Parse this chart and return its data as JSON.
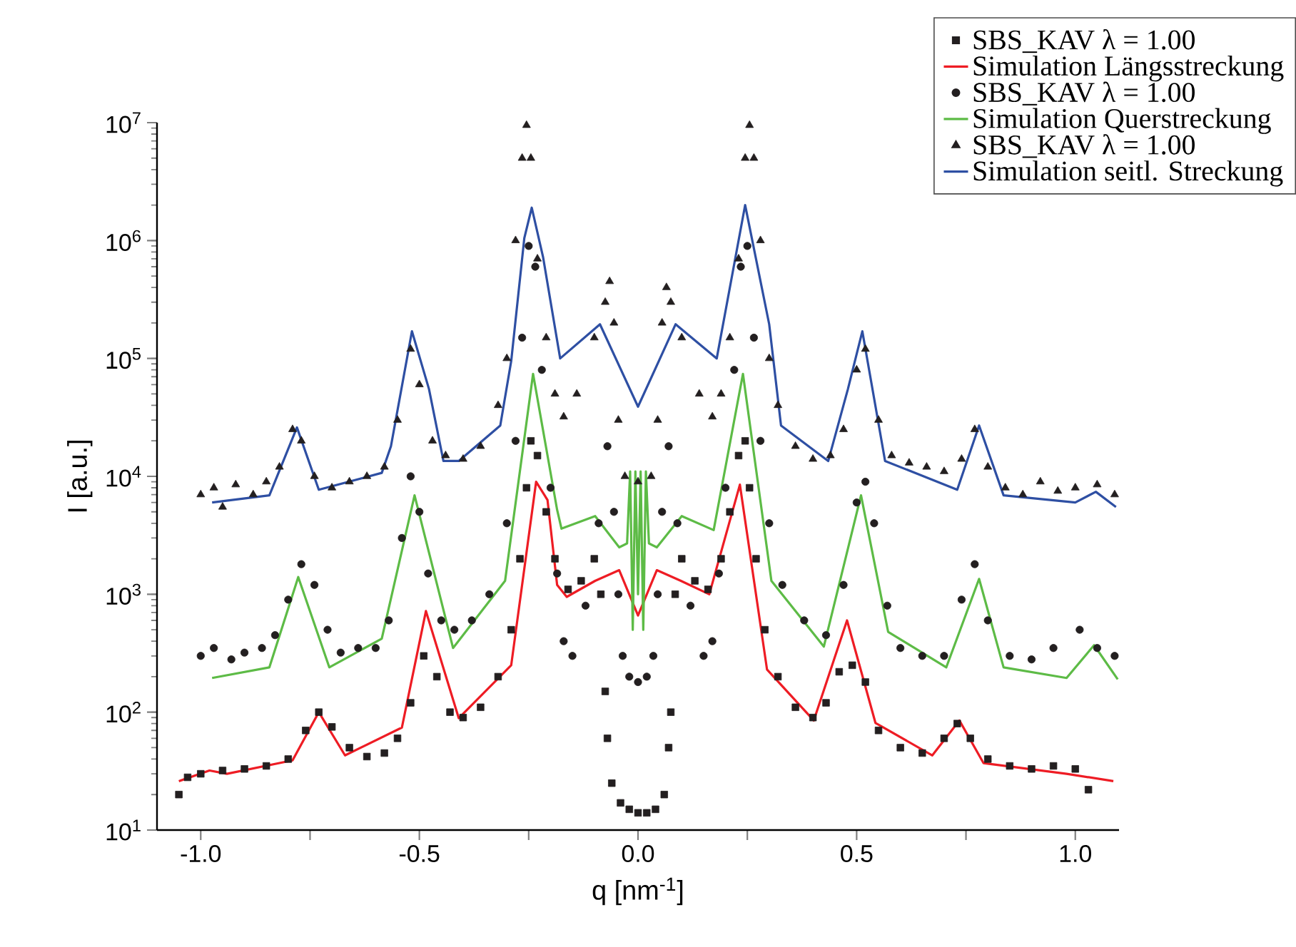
{
  "chart_data": {
    "type": "line",
    "xlabel": "q [nm$^{-1}$]",
    "ylabel": "I [a.u.]",
    "log": "y",
    "grid": false,
    "legend": "top right",
    "xlim": [
      -1.1,
      1.1
    ],
    "ylim": [
      10,
      10000000
    ],
    "xticks": [
      {
        "value": -1,
        "label": "-1.0"
      },
      {
        "value": -0.75,
        "label": null
      },
      {
        "value": -0.5,
        "label": "-0.5"
      },
      {
        "value": -0.25,
        "label": null
      },
      {
        "value": 0,
        "label": "0.0"
      },
      {
        "value": 0.25,
        "label": null
      },
      {
        "value": 0.5,
        "label": "0.5"
      },
      {
        "value": 0.75,
        "label": null
      },
      {
        "value": 1,
        "label": "1.0"
      }
    ],
    "yticks": [
      {
        "value": 10,
        "label": "10$^{1}$"
      },
      {
        "value": 100,
        "label": "10$^{2}$"
      },
      {
        "value": 1000,
        "label": "10$^{3}$"
      },
      {
        "value": 10000,
        "label": "10$^{4}$"
      },
      {
        "value": 100000,
        "label": "10$^{5}$"
      },
      {
        "value": 1000000,
        "label": "10$^{6}$"
      },
      {
        "value": 10000000,
        "label": "10$^{7}$"
      }
    ],
    "series": [
      {
        "name": "SBS_KAV λ = 1.00",
        "type": "scatter",
        "marker": "square",
        "color": "#231f20",
        "x": [
          -1.05,
          -1.03,
          -1.0,
          -0.95,
          -0.9,
          -0.85,
          -0.8,
          -0.76,
          -0.73,
          -0.7,
          -0.66,
          -0.62,
          -0.58,
          -0.55,
          -0.52,
          -0.49,
          -0.46,
          -0.43,
          -0.4,
          -0.36,
          -0.32,
          -0.29,
          -0.27,
          -0.255,
          -0.245,
          -0.23,
          -0.21,
          -0.19,
          -0.16,
          -0.13,
          -0.1,
          -0.085,
          -0.075,
          -0.07,
          -0.06,
          -0.04,
          -0.02,
          0,
          0.02,
          0.04,
          0.06,
          0.07,
          0.075,
          0.085,
          0.1,
          0.13,
          0.16,
          0.19,
          0.21,
          0.23,
          0.245,
          0.255,
          0.27,
          0.29,
          0.32,
          0.36,
          0.4,
          0.43,
          0.46,
          0.49,
          0.52,
          0.55,
          0.6,
          0.65,
          0.7,
          0.73,
          0.76,
          0.8,
          0.85,
          0.9,
          0.95,
          1.0,
          1.03
        ],
        "values": [
          20,
          28,
          30,
          32,
          33,
          35,
          40,
          70,
          100,
          75,
          50,
          42,
          45,
          60,
          120,
          300,
          200,
          100,
          90,
          110,
          200,
          500,
          2000,
          8000,
          20000,
          15000,
          5000,
          2000,
          1100,
          1300,
          2000,
          1000,
          150,
          60,
          25,
          17,
          15,
          14,
          14,
          15,
          20,
          50,
          100,
          1000,
          2000,
          1300,
          1100,
          2000,
          5000,
          15000,
          20000,
          8000,
          2000,
          500,
          200,
          110,
          90,
          120,
          220,
          250,
          180,
          70,
          50,
          45,
          60,
          80,
          60,
          40,
          35,
          33,
          35,
          33,
          22
        ]
      },
      {
        "name": "Simulation Längsstreckung",
        "marker": "none",
        "color": "#ee1c24",
        "x": [
          -1.05,
          -0.98,
          -0.94,
          -0.79,
          -0.73,
          -0.67,
          -0.54,
          -0.485,
          -0.41,
          -0.29,
          -0.233,
          -0.207,
          -0.185,
          -0.163,
          -0.098,
          -0.043,
          0,
          0.043,
          0.098,
          0.163,
          0.233,
          0.295,
          0.402,
          0.478,
          0.543,
          0.673,
          0.735,
          0.79,
          0.98,
          1.087
        ],
        "values": [
          26,
          32,
          30,
          39,
          100,
          43,
          74,
          720,
          89,
          250,
          9000,
          6300,
          1200,
          950,
          1300,
          1600,
          660,
          1600,
          1300,
          1000,
          8500,
          230,
          85,
          600,
          81,
          43,
          85,
          37,
          30,
          26
        ]
      },
      {
        "name": "SBS_KAV λ = 1.00",
        "type": "scatter",
        "marker": "circle",
        "color": "#231f20",
        "x": [
          -1.0,
          -0.97,
          -0.93,
          -0.9,
          -0.86,
          -0.83,
          -0.8,
          -0.77,
          -0.74,
          -0.71,
          -0.68,
          -0.64,
          -0.6,
          -0.57,
          -0.54,
          -0.52,
          -0.5,
          -0.48,
          -0.45,
          -0.42,
          -0.38,
          -0.34,
          -0.3,
          -0.28,
          -0.265,
          -0.25,
          -0.235,
          -0.22,
          -0.2,
          -0.185,
          -0.17,
          -0.15,
          -0.12,
          -0.09,
          -0.07,
          -0.055,
          -0.045,
          -0.035,
          -0.02,
          0,
          0.02,
          0.035,
          0.045,
          0.055,
          0.07,
          0.09,
          0.12,
          0.15,
          0.17,
          0.185,
          0.2,
          0.22,
          0.235,
          0.25,
          0.265,
          0.28,
          0.3,
          0.33,
          0.38,
          0.43,
          0.47,
          0.5,
          0.52,
          0.54,
          0.57,
          0.6,
          0.65,
          0.7,
          0.74,
          0.77,
          0.8,
          0.85,
          0.9,
          0.95,
          1.01,
          1.05,
          1.09
        ],
        "values": [
          300,
          350,
          280,
          320,
          350,
          450,
          900,
          1800,
          1200,
          500,
          320,
          350,
          350,
          600,
          3000,
          10000,
          5000,
          1500,
          600,
          500,
          600,
          1000,
          4000,
          20000,
          150000,
          900000,
          600000,
          80000,
          8000,
          1500,
          400,
          300,
          800,
          4000,
          18000,
          5000,
          1000,
          300,
          200,
          180,
          200,
          300,
          1000,
          5000,
          18000,
          4000,
          800,
          300,
          400,
          1500,
          8000,
          80000,
          600000,
          900000,
          150000,
          20000,
          4000,
          1200,
          600,
          450,
          1200,
          6000,
          9000,
          4000,
          800,
          350,
          300,
          300,
          900,
          1800,
          600,
          300,
          280,
          350,
          500,
          350,
          300
        ]
      },
      {
        "name": "Simulation Querstreckung",
        "marker": "none",
        "color": "#5dbb46",
        "x": [
          -0.974,
          -0.843,
          -0.777,
          -0.706,
          -0.586,
          -0.511,
          -0.423,
          -0.304,
          -0.24,
          -0.185,
          -0.175,
          -0.098,
          -0.043,
          -0.025,
          -0.018,
          -0.012,
          -0.006,
          0,
          0.006,
          0.012,
          0.018,
          0.025,
          0.043,
          0.1,
          0.173,
          0.24,
          0.305,
          0.425,
          0.51,
          0.572,
          0.705,
          0.78,
          0.836,
          0.98,
          1.043,
          1.097
        ],
        "values": [
          195,
          240,
          1400,
          240,
          420,
          6900,
          350,
          1300,
          74000,
          5200,
          3600,
          4600,
          2500,
          2700,
          11000,
          500,
          11000,
          1000,
          11000,
          500,
          11000,
          2700,
          2500,
          4600,
          3500,
          74000,
          1300,
          360,
          6900,
          480,
          240,
          1350,
          240,
          195,
          370,
          190
        ]
      },
      {
        "name": "SBS_KAV λ = 1.00",
        "type": "scatter",
        "marker": "triangle",
        "color": "#231f20",
        "x": [
          -1.0,
          -0.97,
          -0.95,
          -0.92,
          -0.88,
          -0.85,
          -0.82,
          -0.79,
          -0.77,
          -0.74,
          -0.7,
          -0.66,
          -0.62,
          -0.58,
          -0.55,
          -0.52,
          -0.5,
          -0.47,
          -0.44,
          -0.4,
          -0.36,
          -0.32,
          -0.3,
          -0.28,
          -0.265,
          -0.255,
          -0.245,
          -0.23,
          -0.21,
          -0.19,
          -0.17,
          -0.14,
          -0.1,
          -0.075,
          -0.065,
          -0.055,
          -0.045,
          -0.03,
          0,
          0.03,
          0.045,
          0.055,
          0.065,
          0.075,
          0.1,
          0.14,
          0.17,
          0.19,
          0.21,
          0.23,
          0.245,
          0.255,
          0.265,
          0.28,
          0.3,
          0.32,
          0.36,
          0.4,
          0.44,
          0.47,
          0.5,
          0.52,
          0.55,
          0.58,
          0.62,
          0.66,
          0.7,
          0.74,
          0.77,
          0.8,
          0.84,
          0.88,
          0.92,
          0.96,
          1.0,
          1.05,
          1.09
        ],
        "values": [
          7000,
          8000,
          5500,
          8500,
          7000,
          9000,
          12000,
          25000,
          20000,
          10000,
          8000,
          9000,
          10000,
          12000,
          30000,
          120000,
          60000,
          20000,
          15000,
          14000,
          18000,
          40000,
          100000,
          1000000,
          5000000,
          9500000,
          5000000,
          700000,
          150000,
          50000,
          32000,
          50000,
          150000,
          300000,
          450000,
          200000,
          30000,
          10000,
          9000,
          10000,
          30000,
          200000,
          400000,
          300000,
          150000,
          50000,
          32000,
          50000,
          150000,
          700000,
          5000000,
          9500000,
          5000000,
          1000000,
          100000,
          40000,
          18000,
          14000,
          15000,
          25000,
          80000,
          120000,
          30000,
          15000,
          13000,
          12000,
          11000,
          14000,
          25000,
          12000,
          8000,
          7000,
          9000,
          7500,
          8000,
          8500,
          7000
        ]
      },
      {
        "name": "Simulation seitl. Streckung",
        "marker": "none",
        "color": "#2e4fa3",
        "x": [
          -0.974,
          -0.843,
          -0.78,
          -0.73,
          -0.586,
          -0.565,
          -0.517,
          -0.478,
          -0.445,
          -0.41,
          -0.315,
          -0.29,
          -0.26,
          -0.243,
          -0.217,
          -0.178,
          -0.087,
          0,
          0.086,
          0.18,
          0.245,
          0.3,
          0.327,
          0.435,
          0.48,
          0.513,
          0.565,
          0.73,
          0.78,
          0.836,
          1.0,
          1.047,
          1.093
        ],
        "values": [
          6000,
          6900,
          26000,
          7700,
          10700,
          18000,
          170000,
          55000,
          13500,
          13500,
          27000,
          95000,
          1050000,
          1900000,
          720000,
          100000,
          195000,
          39000,
          195000,
          100000,
          2000000,
          195000,
          27000,
          13500,
          55000,
          170000,
          13500,
          7700,
          27000,
          6900,
          6000,
          7400,
          5500
        ]
      }
    ]
  }
}
